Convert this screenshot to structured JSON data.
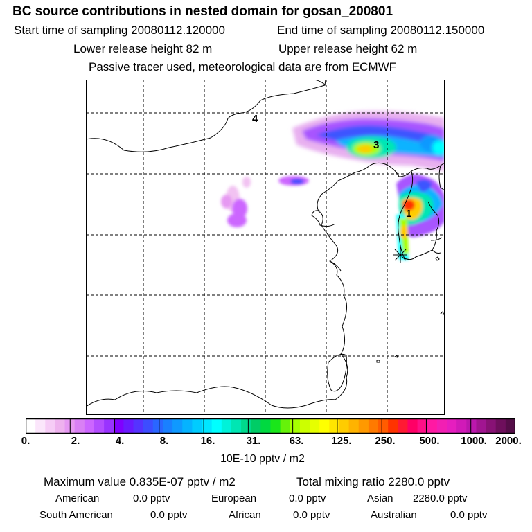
{
  "header": {
    "title": "BC  source contributions in nested domain for gosan_200801",
    "start_time": "Start time of sampling 20080112.120000",
    "end_time": "End time of sampling 20080112.150000",
    "lower_release": "Lower release height   82 m",
    "upper_release": "Upper release height   62 m",
    "tracer_note": "Passive tracer used, meteorological data are from ECMWF"
  },
  "map": {
    "source_labels": [
      "1",
      "3",
      "4"
    ],
    "station_marker": "receptor-star"
  },
  "colorbar": {
    "ticks": [
      "0.",
      "2.",
      "4.",
      "8.",
      "16.",
      "31.",
      "63.",
      "125.",
      "250.",
      "500.",
      "1000.",
      "2000."
    ],
    "colors": [
      "#ffffff",
      "#fbe6fb",
      "#f6ccf6",
      "#eeb2ee",
      "#e699f2",
      "#d980f5",
      "#cc66ff",
      "#b34dff",
      "#9933ff",
      "#8000ff",
      "#6a1aff",
      "#5533ff",
      "#3d4dff",
      "#2a66ff",
      "#1a80ff",
      "#0f99ff",
      "#05b3ff",
      "#00ccff",
      "#00e6ff",
      "#00ffff",
      "#00f2d9",
      "#00e6b3",
      "#00d98c",
      "#00cc66",
      "#00d940",
      "#1ae61a",
      "#66f20a",
      "#a6ff00",
      "#ccff00",
      "#e6ff00",
      "#ffff00",
      "#ffe600",
      "#ffcc00",
      "#ffb300",
      "#ff9900",
      "#ff7a00",
      "#ff5c00",
      "#ff3300",
      "#ff1a33",
      "#ff0066",
      "#ff0f88",
      "#ff19a3",
      "#f21fb3",
      "#e61ebf",
      "#d11ab8",
      "#bb17ad",
      "#a11591",
      "#881275",
      "#6e0f5c",
      "#550d48"
    ],
    "units": "10E-10 pptv / m2"
  },
  "summary": {
    "max_value": "Maximum value  0.835E-07 pptv / m2",
    "total_mixing": "Total mixing ratio     2280.0 pptv",
    "regions": [
      {
        "name": "American",
        "value": "0.0 pptv"
      },
      {
        "name": "European",
        "value": "0.0 pptv"
      },
      {
        "name": "Asian",
        "value": "2280.0 pptv"
      },
      {
        "name": "South American",
        "value": "0.0 pptv"
      },
      {
        "name": "African",
        "value": "0.0 pptv"
      },
      {
        "name": "Australian",
        "value": "0.0 pptv"
      }
    ]
  }
}
